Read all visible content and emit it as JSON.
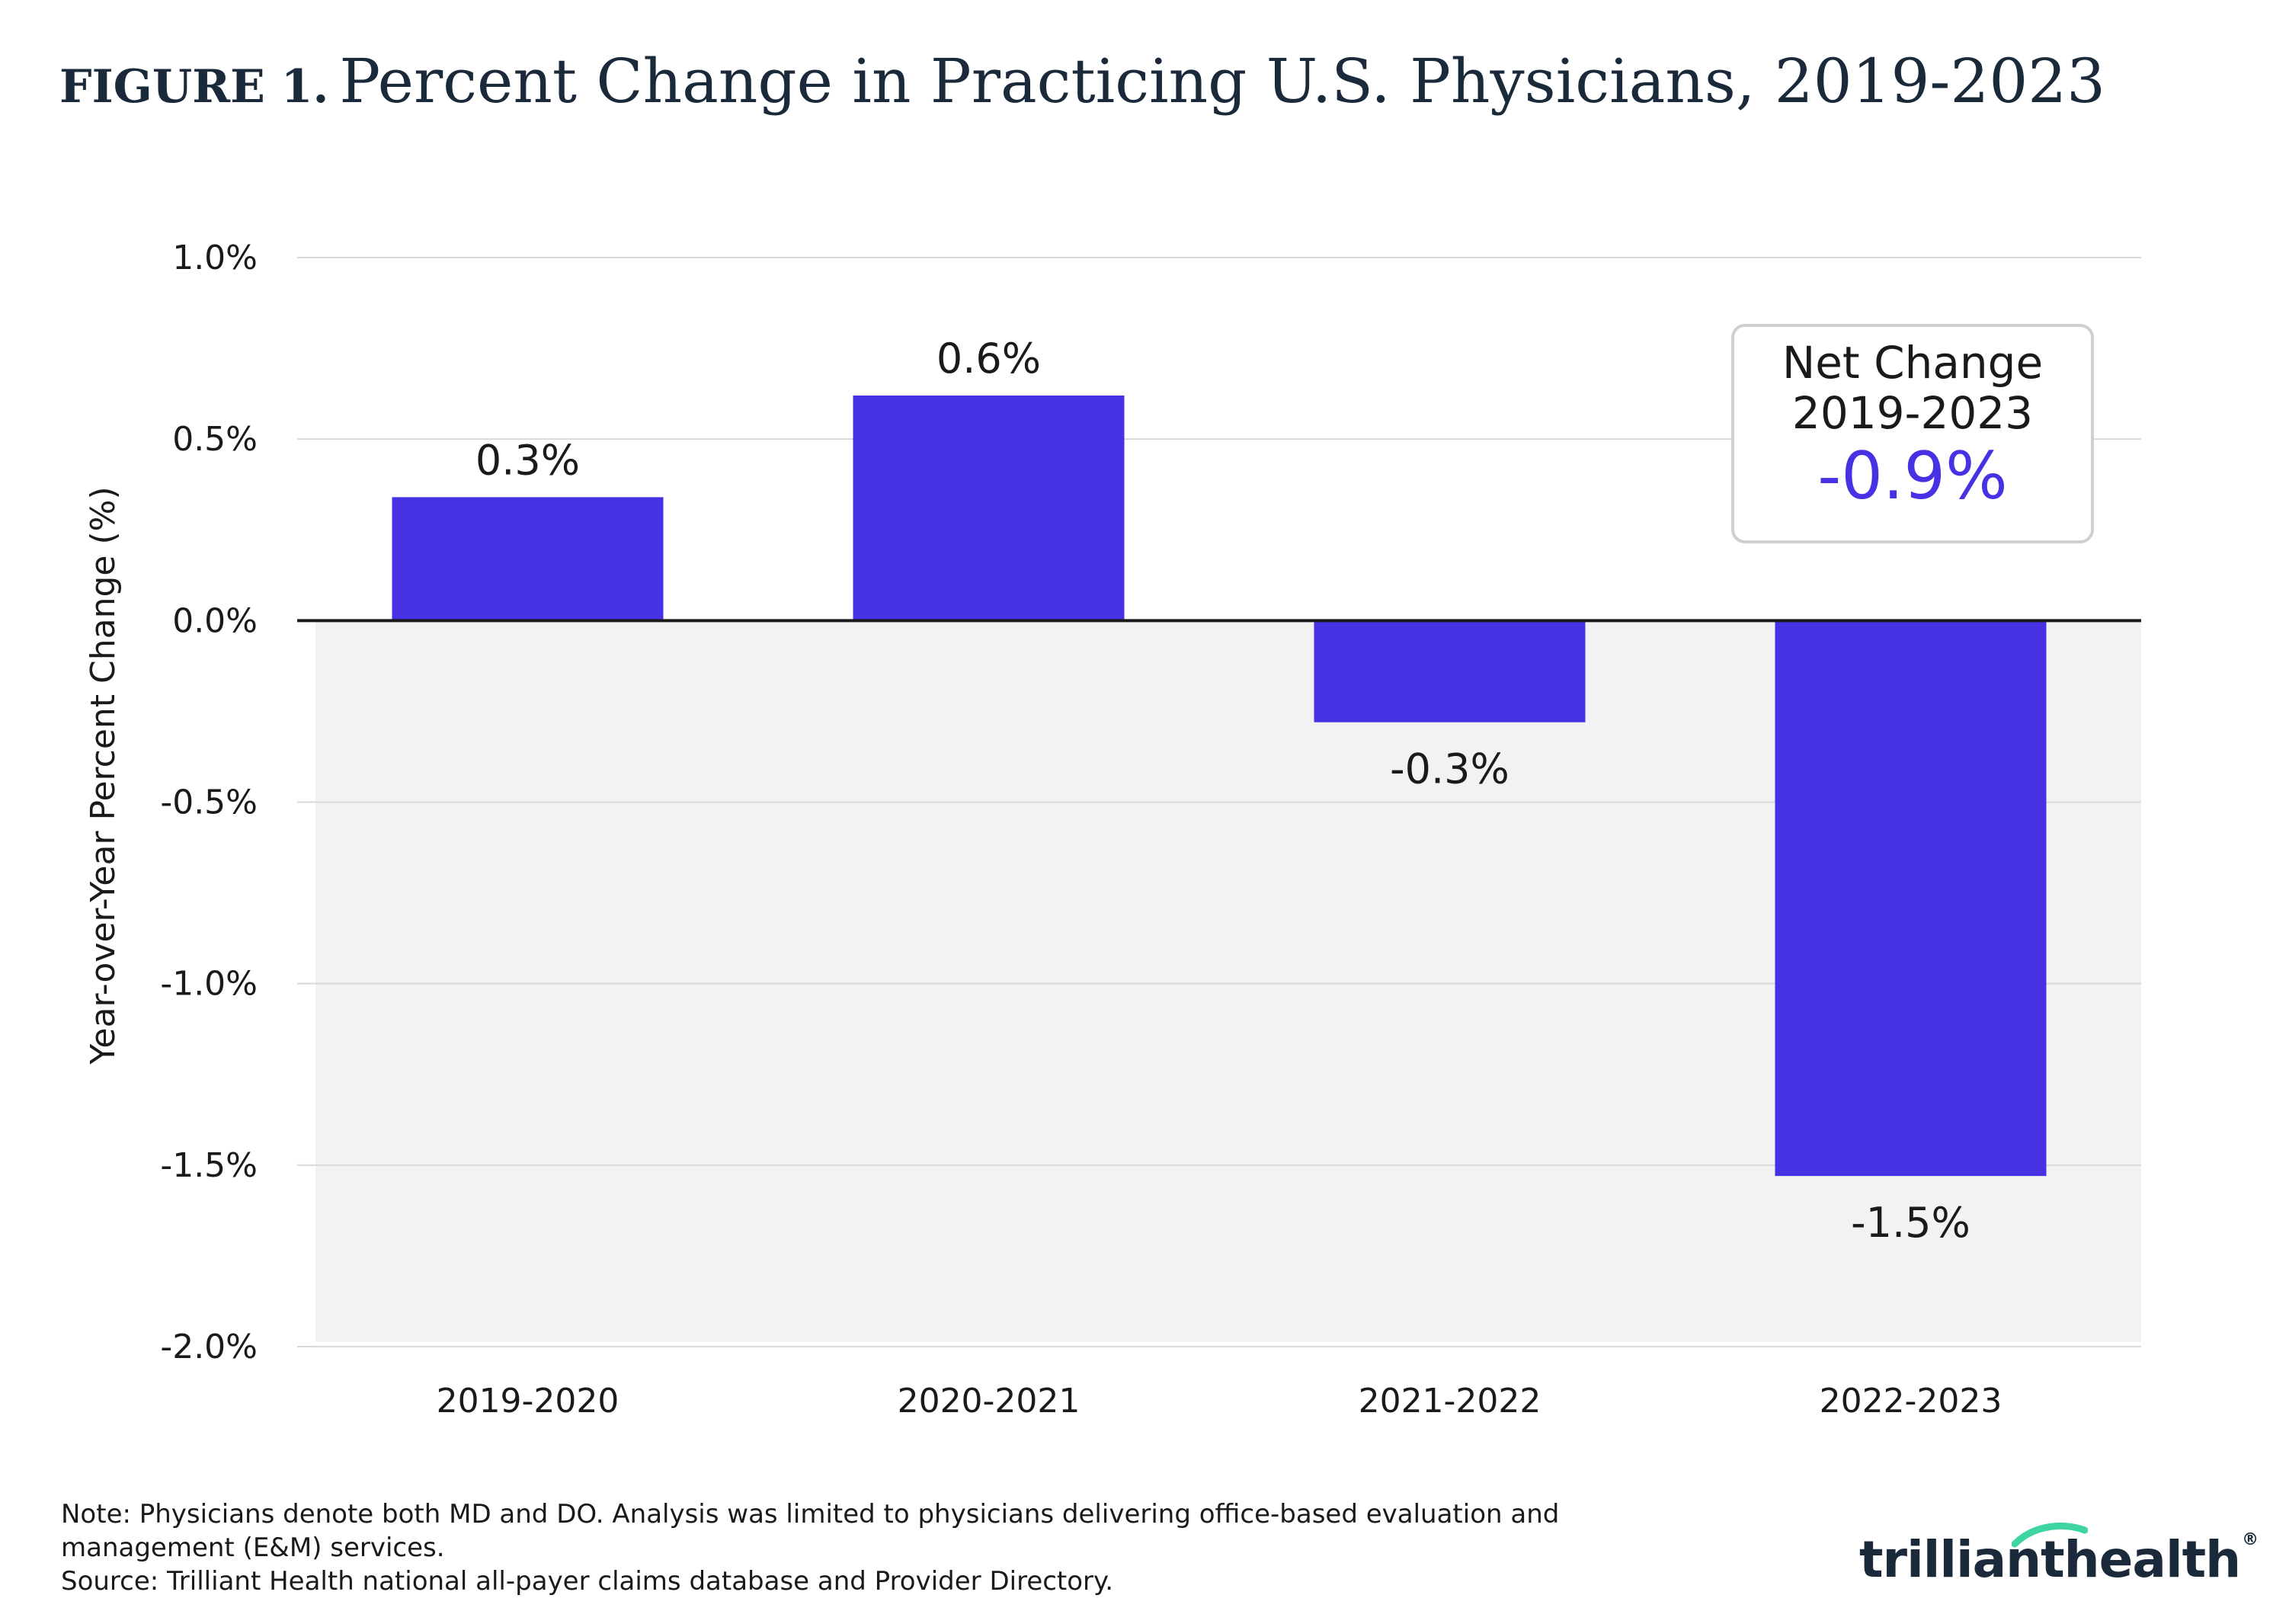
{
  "header": {
    "figure_label": "FIGURE 1.",
    "title": "Percent Change in Practicing U.S. Physicians, 2019-2023"
  },
  "chart_data": {
    "type": "bar",
    "title": "Percent Change in Practicing U.S. Physicians, 2019-2023",
    "xlabel": "",
    "ylabel": "Year-over-Year Percent Change (%)",
    "categories": [
      "2019-2020",
      "2020-2021",
      "2021-2022",
      "2022-2023"
    ],
    "values": [
      0.34,
      0.62,
      -0.28,
      -1.53
    ],
    "value_labels": [
      "0.3%",
      "0.6%",
      "-0.3%",
      "-1.5%"
    ],
    "ylim": [
      -2.0,
      1.0
    ],
    "yticks": [
      1.0,
      0.5,
      0.0,
      -0.5,
      -1.0,
      -1.5,
      -2.0
    ],
    "ytick_labels": [
      "1.0%",
      "0.5%",
      "0.0%",
      "-0.5%",
      "-1.0%",
      "-1.5%",
      "-2.0%"
    ],
    "grid": true,
    "negative_region_shaded": true,
    "bar_color": "#4631e3",
    "shade_color": "#f2f2f2",
    "grid_color": "#d9d9d9"
  },
  "net_change": {
    "label_line1": "Net Change",
    "label_line2": "2019-2023",
    "value": "-0.9%"
  },
  "footer": {
    "note_line1": "Note: Physicians denote both MD and DO. Analysis was limited to physicians delivering office-based evaluation and",
    "note_line2": "management (E&M) services.",
    "source": "Source: Trilliant Health national all-payer claims database and Provider Directory.",
    "logo_text_1": "trilliant",
    "logo_text_2": "health",
    "logo_mark": "®"
  },
  "colors": {
    "brand_navy": "#1b2a3a",
    "brand_accent": "#4631e3",
    "logo_swoosh": "#3fd4a4"
  }
}
